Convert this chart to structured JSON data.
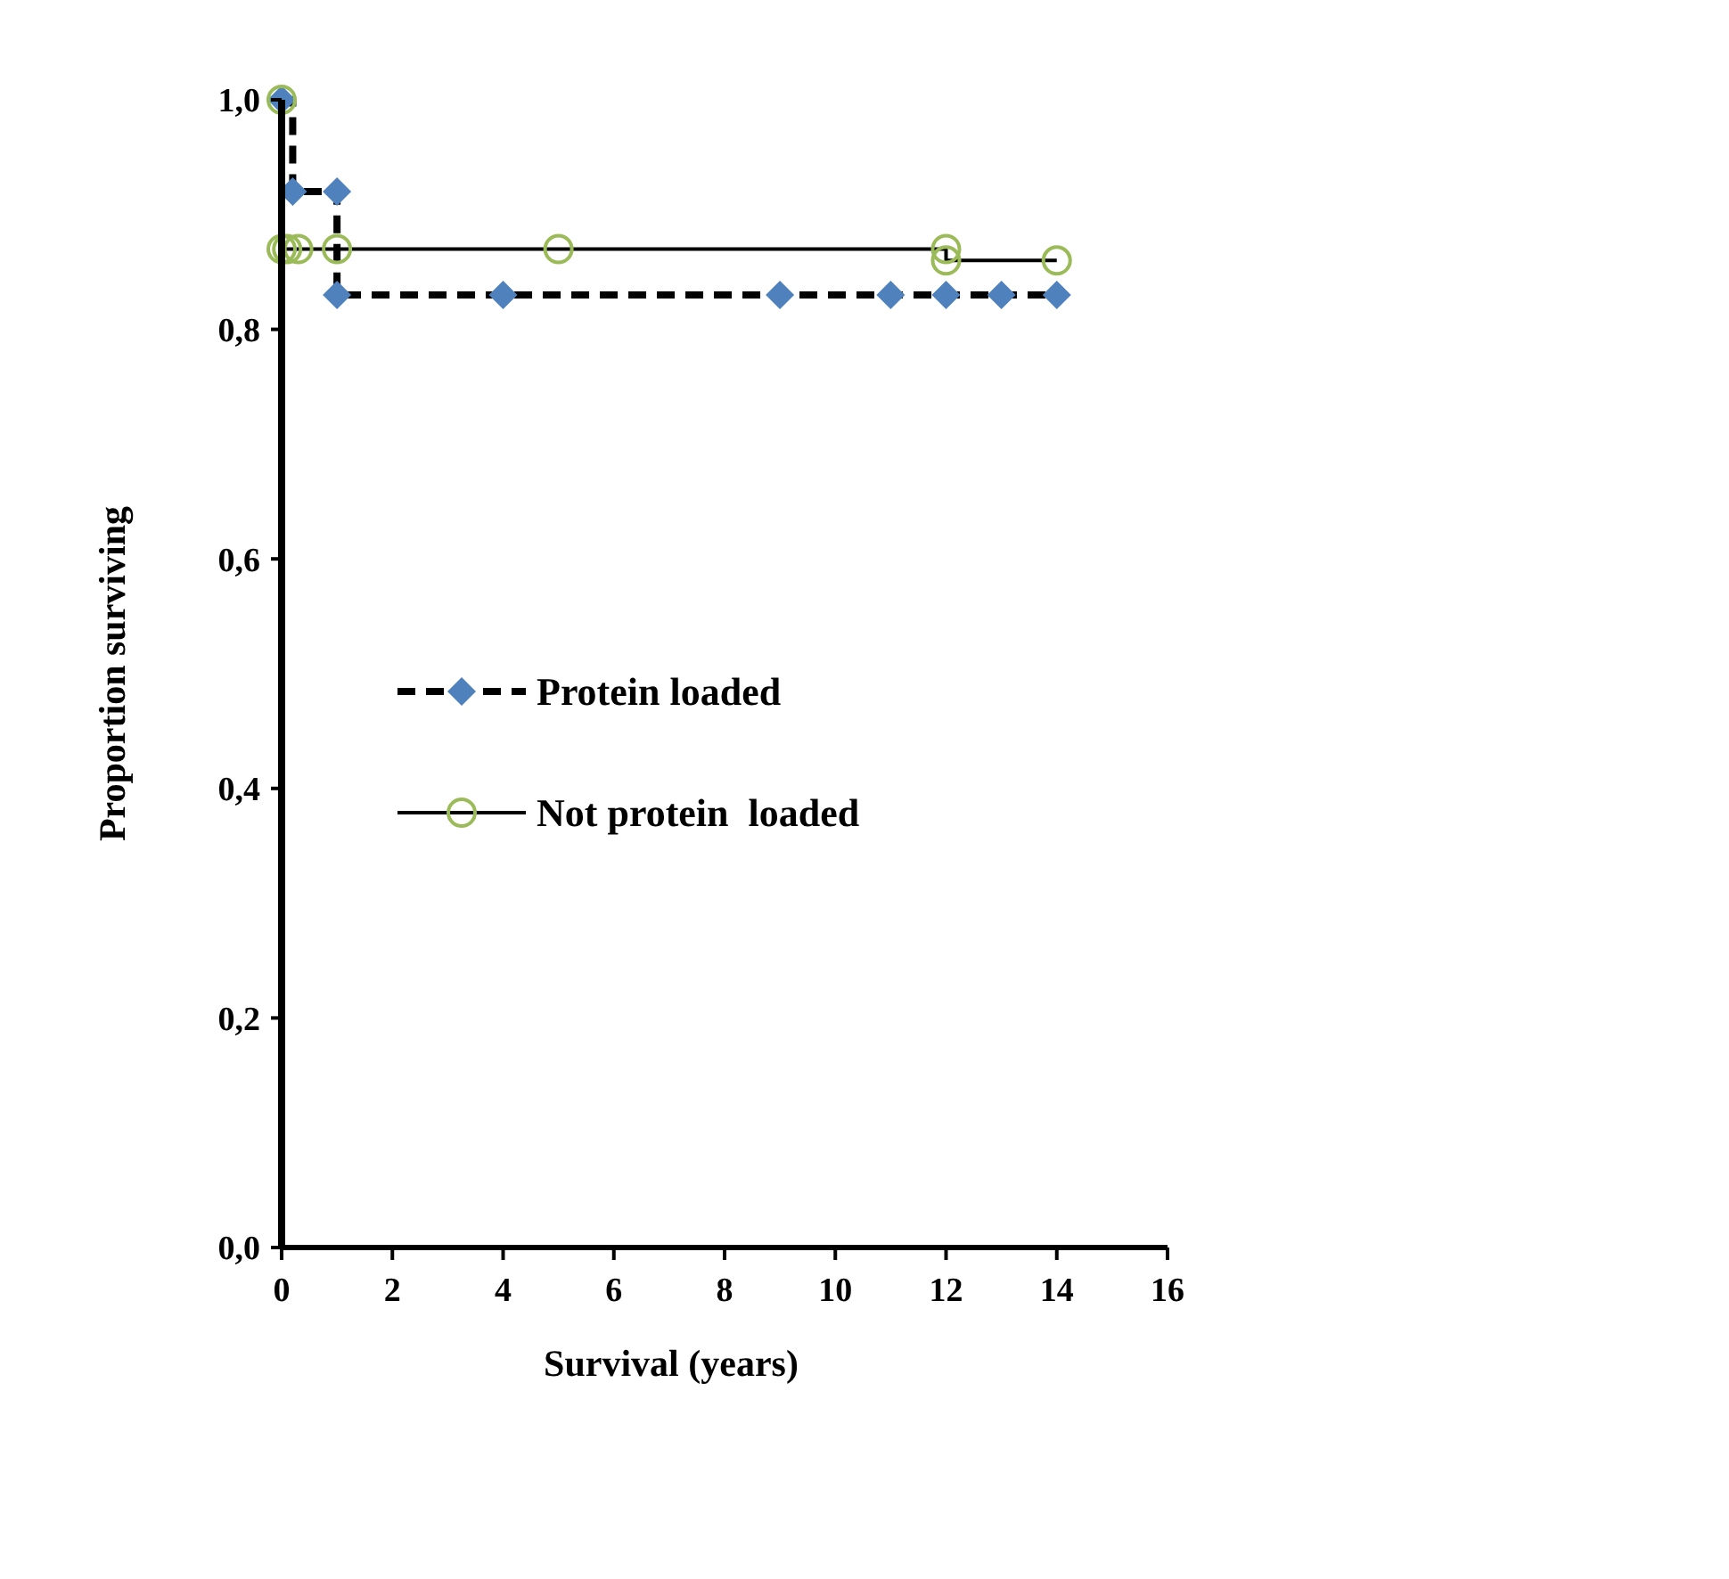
{
  "chart_data": {
    "type": "step",
    "xlabel": "Survival (years)",
    "ylabel": "Proportion surviving",
    "xlim": [
      0,
      16
    ],
    "xticks": [
      0,
      2,
      4,
      6,
      8,
      10,
      12,
      14,
      16
    ],
    "ylim": [
      0,
      1
    ],
    "yticks": [
      {
        "value": 0,
        "label": "0,0"
      },
      {
        "value": 0.2,
        "label": "0,2"
      },
      {
        "value": 0.4,
        "label": "0,4"
      },
      {
        "value": 0.6,
        "label": "0,6"
      },
      {
        "value": 0.8,
        "label": "0,8"
      },
      {
        "value": 1,
        "label": "1,0"
      }
    ],
    "grid": false,
    "legend": "left",
    "series": [
      {
        "name": "Protein loaded",
        "color": "#000000",
        "marker": "none",
        "line_style": "dashed",
        "x": [
          0,
          0.2,
          1,
          1,
          4,
          9,
          11,
          12,
          13,
          14
        ],
        "values": [
          1,
          0.92,
          0.92,
          0.83,
          0.83,
          0.83,
          0.83,
          0.83,
          0.83,
          0.83
        ]
      },
      {
        "type": "scatter",
        "color": "#4f81bd",
        "marker": "diamond",
        "x": [
          0,
          0.2,
          1,
          1,
          4,
          9,
          11,
          12,
          13,
          14
        ],
        "values": [
          1,
          0.92,
          0.92,
          0.83,
          0.83,
          0.83,
          0.83,
          0.83,
          0.83,
          0.83
        ]
      },
      {
        "name": "Not protein  loaded",
        "color": "#000000",
        "marker": "none",
        "line_style": "solid",
        "x": [
          0,
          0,
          0.1,
          0.3,
          1,
          5,
          12,
          12,
          14
        ],
        "values": [
          1,
          0.87,
          0.87,
          0.87,
          0.87,
          0.87,
          0.87,
          0.86,
          0.86
        ]
      },
      {
        "type": "scatter",
        "color": "#9bbb59",
        "marker": "circle",
        "x": [
          0,
          0,
          0.1,
          0.3,
          1,
          5,
          12,
          12,
          14
        ],
        "values": [
          1,
          0.87,
          0.87,
          0.87,
          0.87,
          0.87,
          0.87,
          0.86,
          0.86
        ]
      }
    ]
  }
}
